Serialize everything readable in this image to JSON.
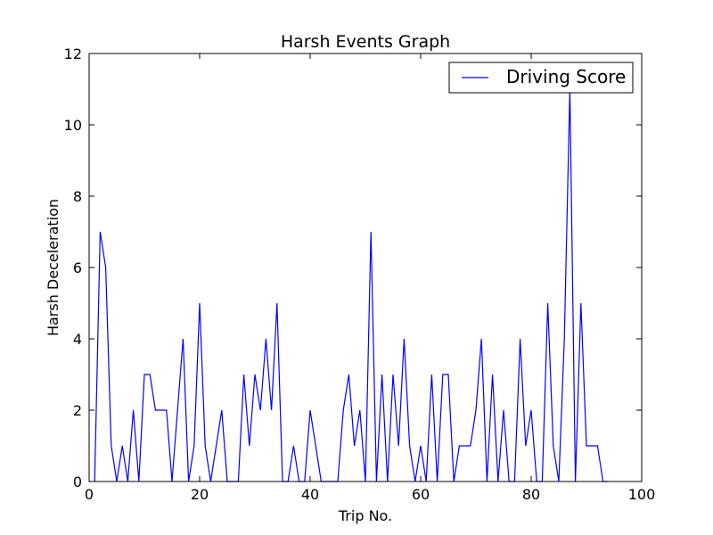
{
  "chart_data": {
    "type": "line",
    "title": "Harsh Events Graph",
    "xlabel": "Trip No.",
    "ylabel": "Harsh Deceleration",
    "xlim": [
      0,
      100
    ],
    "ylim": [
      0,
      12
    ],
    "xticks": [
      0,
      20,
      40,
      60,
      80,
      100
    ],
    "yticks": [
      0,
      2,
      4,
      6,
      8,
      10,
      12
    ],
    "grid": false,
    "legend": {
      "position": "top-right",
      "entries": [
        "Driving Score"
      ]
    },
    "series": [
      {
        "name": "Driving Score",
        "color": "#0000ff",
        "x": [
          1,
          2,
          3,
          4,
          5,
          6,
          7,
          8,
          9,
          10,
          11,
          12,
          13,
          14,
          15,
          16,
          17,
          18,
          19,
          20,
          21,
          22,
          23,
          24,
          25,
          26,
          27,
          28,
          29,
          30,
          31,
          32,
          33,
          34,
          35,
          36,
          37,
          38,
          39,
          40,
          41,
          42,
          43,
          44,
          45,
          46,
          47,
          48,
          49,
          50,
          51,
          52,
          53,
          54,
          55,
          56,
          57,
          58,
          59,
          60,
          61,
          62,
          63,
          64,
          65,
          66,
          67,
          68,
          69,
          70,
          71,
          72,
          73,
          74,
          75,
          76,
          77,
          78,
          79,
          80,
          81,
          82,
          83,
          84,
          85,
          86,
          87,
          88,
          89,
          90,
          91,
          92,
          93,
          94
        ],
        "y": [
          0,
          7,
          6,
          1,
          0,
          1,
          0,
          2,
          0,
          3,
          3,
          2,
          2,
          2,
          0,
          2,
          4,
          0,
          1,
          5,
          1,
          0,
          1,
          2,
          0,
          0,
          0,
          3,
          1,
          3,
          2,
          4,
          2,
          5,
          0,
          0,
          1,
          0,
          0,
          2,
          1,
          0,
          0,
          0,
          0,
          2,
          3,
          1,
          2,
          0,
          7,
          0,
          3,
          0,
          3,
          1,
          4,
          1,
          0,
          1,
          0,
          3,
          0,
          3,
          3,
          0,
          1,
          1,
          1,
          2,
          4,
          0,
          3,
          0,
          2,
          0,
          0,
          4,
          1,
          2,
          0,
          0,
          5,
          1,
          0,
          4,
          11,
          0,
          5,
          1,
          1,
          1,
          0,
          0
        ]
      }
    ]
  }
}
